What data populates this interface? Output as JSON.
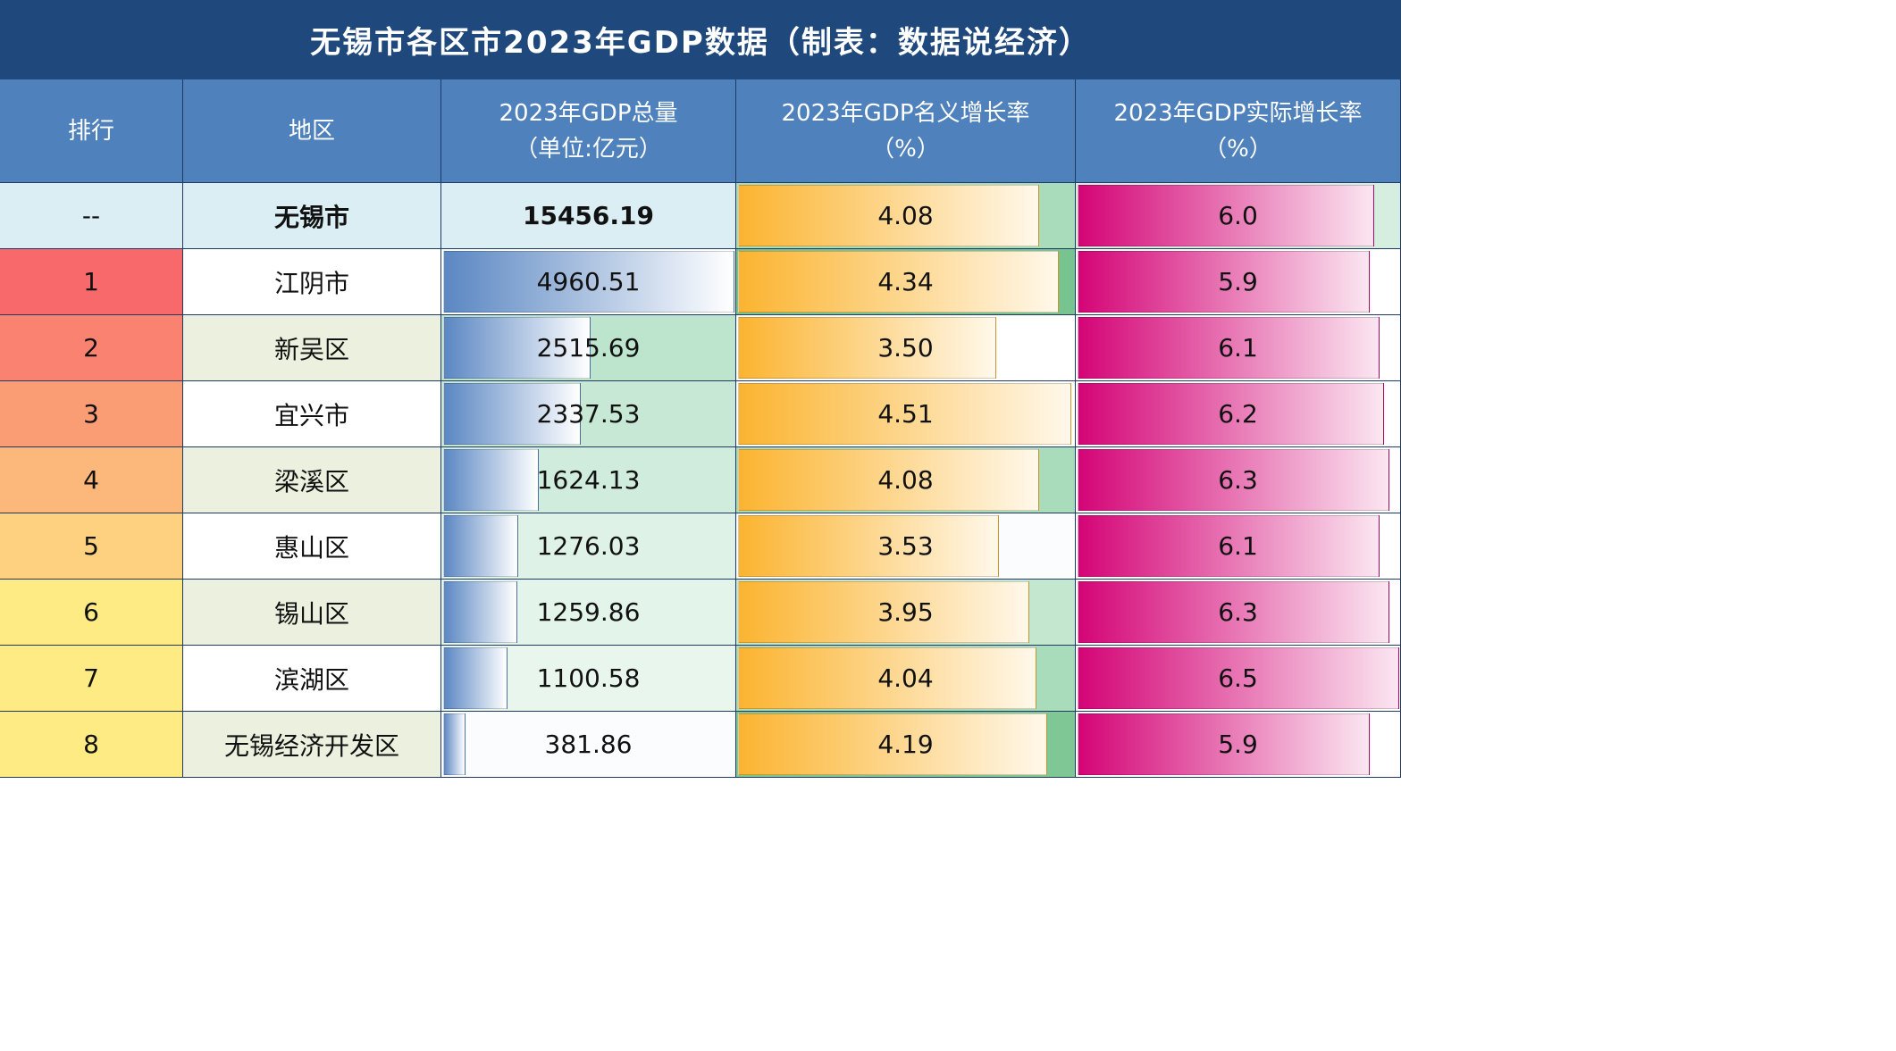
{
  "title": "无锡市各区市2023年GDP数据（制表：数据说经济）",
  "headers": {
    "rank": "排行",
    "region": "地区",
    "gdp_line1": "2023年GDP总量",
    "gdp_line2": "（单位:亿元）",
    "nominal_line1": "2023年GDP名义增长率",
    "nominal_line2": "（%）",
    "real_line1": "2023年GDP实际增长率",
    "real_line2": "（%）"
  },
  "city_row": {
    "rank": "--",
    "region": "无锡市",
    "gdp": "15456.19",
    "nominal": "4.08",
    "real": "6.0"
  },
  "rows": [
    {
      "rank": "1",
      "region": "江阴市",
      "gdp": "4960.51",
      "nominal": "4.34",
      "real": "5.9"
    },
    {
      "rank": "2",
      "region": "新吴区",
      "gdp": "2515.69",
      "nominal": "3.50",
      "real": "6.1"
    },
    {
      "rank": "3",
      "region": "宜兴市",
      "gdp": "2337.53",
      "nominal": "4.51",
      "real": "6.2"
    },
    {
      "rank": "4",
      "region": "梁溪区",
      "gdp": "1624.13",
      "nominal": "4.08",
      "real": "6.3"
    },
    {
      "rank": "5",
      "region": "惠山区",
      "gdp": "1276.03",
      "nominal": "3.53",
      "real": "6.1"
    },
    {
      "rank": "6",
      "region": "锡山区",
      "gdp": "1259.86",
      "nominal": "3.95",
      "real": "6.3"
    },
    {
      "rank": "7",
      "region": "滨湖区",
      "gdp": "1100.58",
      "nominal": "4.04",
      "real": "6.5"
    },
    {
      "rank": "8",
      "region": "无锡经济开发区",
      "gdp": "381.86",
      "nominal": "4.19",
      "real": "5.9"
    }
  ],
  "colors": {
    "title_bg": "#1f497d",
    "header_bg": "#4f81bd",
    "city_row_bg": "#daeef3",
    "rank_bg": [
      "#f8696b",
      "#f98370",
      "#fa9d75",
      "#fcb77a",
      "#fdd17f",
      "#ffeb84",
      "#ffeb84",
      "#ffeb84"
    ],
    "region_bg": [
      "#ffffff",
      "#ebf1de",
      "#ffffff",
      "#ebf1de",
      "#ffffff",
      "#ebf1de",
      "#ffffff",
      "#ebf1de"
    ],
    "gdp_cell_bg": [
      "#ffffff",
      "#bde4cd",
      "#c6e8d4",
      "#d0ecdc",
      "#dff2e7",
      "#e3f4ea",
      "#e8f6ee",
      "#fafcfd"
    ],
    "nominal_cell_bg": [
      "#a9dcbb",
      "#77c490",
      "#ffffff",
      "#ffffff",
      "#a9dcbb",
      "#fafcfd",
      "#c4e7d0",
      "#a9dcbb",
      "#7fc795"
    ],
    "real_cell_bg": [
      "#d6eee0",
      "#ffffff",
      "#ffffff",
      "#ffffff",
      "#ffffff",
      "#ffffff",
      "#ffffff",
      "#ffffff",
      "#ffffff"
    ]
  },
  "chart_data": {
    "type": "table",
    "columns": [
      "排行",
      "地区",
      "2023年GDP总量（单位:亿元）",
      "2023年GDP名义增长率（%）",
      "2023年GDP实际增长率（%）"
    ],
    "city_total": {
      "region": "无锡市",
      "gdp": 15456.19,
      "nominal_growth": 4.08,
      "real_growth": 6.0
    },
    "categories": [
      "江阴市",
      "新吴区",
      "宜兴市",
      "梁溪区",
      "惠山区",
      "锡山区",
      "滨湖区",
      "无锡经济开发区"
    ],
    "series": [
      {
        "name": "2023年GDP总量（单位:亿元）",
        "values": [
          4960.51,
          2515.69,
          2337.53,
          1624.13,
          1276.03,
          1259.86,
          1100.58,
          381.86
        ]
      },
      {
        "name": "2023年GDP名义增长率（%）",
        "values": [
          4.34,
          3.5,
          4.51,
          4.08,
          3.53,
          3.95,
          4.04,
          4.19
        ]
      },
      {
        "name": "2023年GDP实际增长率（%）",
        "values": [
          5.9,
          6.1,
          6.2,
          6.3,
          6.1,
          6.3,
          6.5,
          5.9
        ]
      }
    ]
  }
}
